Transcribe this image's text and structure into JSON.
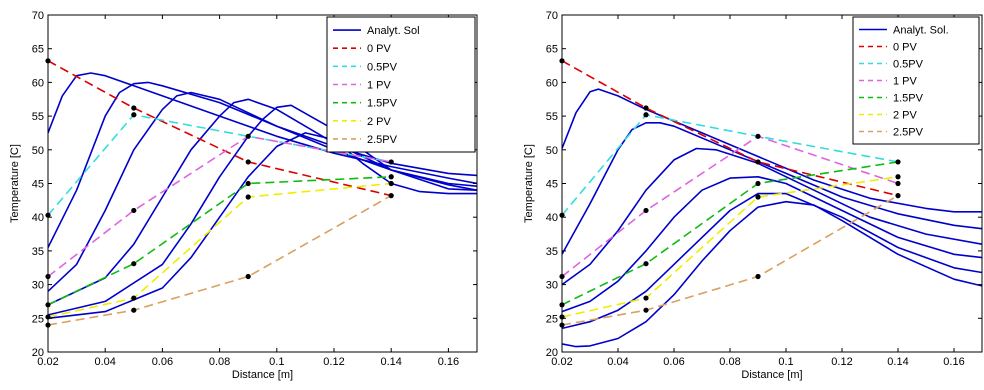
{
  "chart_data": [
    {
      "type": "line",
      "xlabel": "Distance [m]",
      "ylabel": "Temperature [C]",
      "xlim": [
        0.02,
        0.17
      ],
      "ylim": [
        20,
        70
      ],
      "xticks": [
        "0.02",
        "0.04",
        "0.06",
        "0.08",
        "0.1",
        "0.12",
        "0.14",
        "0.16"
      ],
      "yticks": [
        "20",
        "25",
        "30",
        "35",
        "40",
        "45",
        "50",
        "55",
        "60",
        "65",
        "70"
      ],
      "legend_position": "top-right",
      "legend": [
        "Analyt. Sol",
        "0  PV",
        "0.5PV",
        "1  PV",
        "1.5PV",
        "2  PV",
        "2.5PV"
      ],
      "analytic": {
        "name": "Analyt. Sol",
        "color": "#0000cc",
        "curves": [
          [
            [
              0.02,
              52.5
            ],
            [
              0.025,
              58
            ],
            [
              0.03,
              61
            ],
            [
              0.035,
              61.4
            ],
            [
              0.04,
              61
            ],
            [
              0.05,
              59.5
            ],
            [
              0.06,
              58
            ],
            [
              0.08,
              55
            ],
            [
              0.1,
              52
            ],
            [
              0.12,
              49.5
            ],
            [
              0.14,
              47.5
            ],
            [
              0.16,
              45.8
            ],
            [
              0.17,
              45
            ]
          ],
          [
            [
              0.02,
              35.5
            ],
            [
              0.03,
              44
            ],
            [
              0.04,
              55
            ],
            [
              0.045,
              58.5
            ],
            [
              0.05,
              59.8
            ],
            [
              0.055,
              60
            ],
            [
              0.06,
              59.5
            ],
            [
              0.08,
              57
            ],
            [
              0.1,
              53.5
            ],
            [
              0.12,
              50.5
            ],
            [
              0.14,
              48
            ],
            [
              0.16,
              46.5
            ],
            [
              0.17,
              46.2
            ]
          ],
          [
            [
              0.02,
              29
            ],
            [
              0.03,
              33
            ],
            [
              0.04,
              41
            ],
            [
              0.05,
              50
            ],
            [
              0.06,
              56
            ],
            [
              0.065,
              58
            ],
            [
              0.07,
              58.5
            ],
            [
              0.08,
              57.5
            ],
            [
              0.1,
              53.5
            ],
            [
              0.12,
              50
            ],
            [
              0.14,
              47
            ],
            [
              0.16,
              45
            ],
            [
              0.17,
              44.6
            ]
          ],
          [
            [
              0.02,
              27
            ],
            [
              0.04,
              31
            ],
            [
              0.05,
              36
            ],
            [
              0.06,
              43
            ],
            [
              0.07,
              50
            ],
            [
              0.08,
              55
            ],
            [
              0.085,
              57
            ],
            [
              0.09,
              57.5
            ],
            [
              0.1,
              56
            ],
            [
              0.12,
              51
            ],
            [
              0.14,
              47
            ],
            [
              0.16,
              44.8
            ],
            [
              0.17,
              44
            ]
          ],
          [
            [
              0.02,
              25.5
            ],
            [
              0.04,
              27.5
            ],
            [
              0.06,
              33
            ],
            [
              0.07,
              39
            ],
            [
              0.08,
              46
            ],
            [
              0.09,
              52
            ],
            [
              0.095,
              54.5
            ],
            [
              0.1,
              56.3
            ],
            [
              0.105,
              56.6
            ],
            [
              0.12,
              53
            ],
            [
              0.14,
              47
            ],
            [
              0.16,
              44.2
            ],
            [
              0.17,
              44
            ]
          ],
          [
            [
              0.02,
              25
            ],
            [
              0.04,
              26
            ],
            [
              0.06,
              29.5
            ],
            [
              0.07,
              34
            ],
            [
              0.08,
              40
            ],
            [
              0.09,
              46
            ],
            [
              0.1,
              50.5
            ],
            [
              0.11,
              52.5
            ],
            [
              0.12,
              51.5
            ],
            [
              0.13,
              48
            ],
            [
              0.14,
              45
            ],
            [
              0.15,
              43.8
            ],
            [
              0.16,
              43.5
            ],
            [
              0.17,
              43.5
            ]
          ]
        ]
      },
      "series": [
        {
          "name": "0  PV",
          "color": "#dd0000",
          "points": [
            [
              0.02,
              63.2
            ],
            [
              0.05,
              56.2
            ],
            [
              0.09,
              48.2
            ],
            [
              0.14,
              43.2
            ]
          ]
        },
        {
          "name": "0.5PV",
          "color": "#33dddd",
          "points": [
            [
              0.02,
              40.3
            ],
            [
              0.05,
              55.2
            ],
            [
              0.09,
              52
            ],
            [
              0.14,
              48.2
            ]
          ]
        },
        {
          "name": "1  PV",
          "color": "#dd66dd",
          "points": [
            [
              0.02,
              31.2
            ],
            [
              0.05,
              41
            ],
            [
              0.09,
              52
            ],
            [
              0.14,
              48.2
            ]
          ]
        },
        {
          "name": "1.5PV",
          "color": "#11bb11",
          "points": [
            [
              0.02,
              27
            ],
            [
              0.05,
              33.1
            ],
            [
              0.09,
              45
            ],
            [
              0.14,
              46
            ]
          ]
        },
        {
          "name": "2  PV",
          "color": "#eeee00",
          "points": [
            [
              0.02,
              25.2
            ],
            [
              0.05,
              28
            ],
            [
              0.09,
              43
            ],
            [
              0.14,
              45
            ]
          ]
        },
        {
          "name": "2.5PV",
          "color": "#d9a060",
          "points": [
            [
              0.02,
              24
            ],
            [
              0.05,
              26.2
            ],
            [
              0.09,
              31.2
            ],
            [
              0.14,
              43.2
            ]
          ]
        }
      ],
      "markers": [
        [
          0.02,
          63.2
        ],
        [
          0.02,
          40.3
        ],
        [
          0.02,
          31.2
        ],
        [
          0.02,
          27
        ],
        [
          0.02,
          25.2
        ],
        [
          0.02,
          24
        ],
        [
          0.05,
          56.2
        ],
        [
          0.05,
          55.2
        ],
        [
          0.05,
          41
        ],
        [
          0.05,
          33.1
        ],
        [
          0.05,
          28
        ],
        [
          0.05,
          26.2
        ],
        [
          0.09,
          52
        ],
        [
          0.09,
          48.2
        ],
        [
          0.09,
          45
        ],
        [
          0.09,
          43
        ],
        [
          0.09,
          31.2
        ],
        [
          0.14,
          48.2
        ],
        [
          0.14,
          46
        ],
        [
          0.14,
          45
        ],
        [
          0.14,
          43.2
        ]
      ]
    },
    {
      "type": "line",
      "xlabel": "Distance [m]",
      "ylabel": "Temperature [C]",
      "xlim": [
        0.02,
        0.17
      ],
      "ylim": [
        20,
        70
      ],
      "xticks": [
        "0.02",
        "0.04",
        "0.06",
        "0.08",
        "0.1",
        "0.12",
        "0.14",
        "0.16"
      ],
      "yticks": [
        "20",
        "25",
        "30",
        "35",
        "40",
        "45",
        "50",
        "55",
        "60",
        "65",
        "70"
      ],
      "legend_position": "top-right",
      "legend": [
        "Analyt. Sol.",
        "0  PV",
        "0.5PV",
        "1  PV",
        "1.5PV",
        "2  PV",
        "2.5PV"
      ],
      "analytic": {
        "name": "Analyt. Sol.",
        "color": "#0000cc",
        "curves": [
          [
            [
              0.02,
              50.2
            ],
            [
              0.025,
              55.5
            ],
            [
              0.03,
              58.6
            ],
            [
              0.033,
              59
            ],
            [
              0.04,
              58
            ],
            [
              0.05,
              56
            ],
            [
              0.07,
              52.5
            ],
            [
              0.09,
              49
            ],
            [
              0.11,
              45.5
            ],
            [
              0.13,
              42.8
            ],
            [
              0.15,
              41.3
            ],
            [
              0.16,
              40.8
            ],
            [
              0.17,
              40.8
            ]
          ],
          [
            [
              0.02,
              34.5
            ],
            [
              0.03,
              42
            ],
            [
              0.04,
              50
            ],
            [
              0.045,
              53
            ],
            [
              0.05,
              54
            ],
            [
              0.055,
              54
            ],
            [
              0.06,
              53.5
            ],
            [
              0.08,
              50
            ],
            [
              0.1,
              46.5
            ],
            [
              0.12,
              43
            ],
            [
              0.14,
              40.5
            ],
            [
              0.16,
              38.8
            ],
            [
              0.17,
              38.3
            ]
          ],
          [
            [
              0.02,
              30
            ],
            [
              0.03,
              33
            ],
            [
              0.04,
              38
            ],
            [
              0.05,
              44
            ],
            [
              0.06,
              48.5
            ],
            [
              0.068,
              50.2
            ],
            [
              0.075,
              50
            ],
            [
              0.09,
              48
            ],
            [
              0.11,
              44
            ],
            [
              0.13,
              40
            ],
            [
              0.15,
              37.5
            ],
            [
              0.17,
              36
            ]
          ],
          [
            [
              0.02,
              26
            ],
            [
              0.03,
              27.5
            ],
            [
              0.04,
              30.5
            ],
            [
              0.05,
              35
            ],
            [
              0.06,
              40
            ],
            [
              0.07,
              44
            ],
            [
              0.08,
              45.8
            ],
            [
              0.09,
              46
            ],
            [
              0.1,
              45
            ],
            [
              0.12,
              41
            ],
            [
              0.14,
              37
            ],
            [
              0.16,
              34.5
            ],
            [
              0.17,
              34
            ]
          ],
          [
            [
              0.02,
              23.5
            ],
            [
              0.03,
              24.5
            ],
            [
              0.04,
              26.2
            ],
            [
              0.05,
              29
            ],
            [
              0.06,
              33
            ],
            [
              0.07,
              37
            ],
            [
              0.08,
              41
            ],
            [
              0.09,
              43.5
            ],
            [
              0.1,
              43.5
            ],
            [
              0.12,
              40
            ],
            [
              0.14,
              35.5
            ],
            [
              0.16,
              32.5
            ],
            [
              0.17,
              31.8
            ]
          ],
          [
            [
              0.02,
              21.2
            ],
            [
              0.025,
              20.8
            ],
            [
              0.03,
              20.9
            ],
            [
              0.04,
              22
            ],
            [
              0.05,
              24.5
            ],
            [
              0.06,
              28.5
            ],
            [
              0.07,
              33.5
            ],
            [
              0.08,
              38
            ],
            [
              0.09,
              41.5
            ],
            [
              0.1,
              42.3
            ],
            [
              0.11,
              41.8
            ],
            [
              0.12,
              39.5
            ],
            [
              0.14,
              34.5
            ],
            [
              0.16,
              30.8
            ],
            [
              0.17,
              29.8
            ]
          ]
        ]
      },
      "series": [
        {
          "name": "0  PV",
          "color": "#dd0000",
          "points": [
            [
              0.02,
              63.2
            ],
            [
              0.05,
              56.2
            ],
            [
              0.09,
              48.2
            ],
            [
              0.14,
              43.2
            ]
          ]
        },
        {
          "name": "0.5PV",
          "color": "#33dddd",
          "points": [
            [
              0.02,
              40.3
            ],
            [
              0.05,
              55.2
            ],
            [
              0.09,
              52
            ],
            [
              0.14,
              48.2
            ]
          ]
        },
        {
          "name": "1  PV",
          "color": "#dd66dd",
          "points": [
            [
              0.02,
              31.2
            ],
            [
              0.05,
              41
            ],
            [
              0.09,
              52
            ],
            [
              0.14,
              45
            ]
          ]
        },
        {
          "name": "1.5PV",
          "color": "#11bb11",
          "points": [
            [
              0.02,
              27
            ],
            [
              0.05,
              33.1
            ],
            [
              0.09,
              45
            ],
            [
              0.14,
              48.2
            ]
          ]
        },
        {
          "name": "2  PV",
          "color": "#eeee00",
          "points": [
            [
              0.02,
              25.2
            ],
            [
              0.05,
              28
            ],
            [
              0.09,
              43
            ],
            [
              0.14,
              46
            ]
          ]
        },
        {
          "name": "2.5PV",
          "color": "#d9a060",
          "points": [
            [
              0.02,
              24
            ],
            [
              0.05,
              26.2
            ],
            [
              0.09,
              31.2
            ],
            [
              0.14,
              43.2
            ]
          ]
        }
      ],
      "markers": [
        [
          0.02,
          63.2
        ],
        [
          0.02,
          40.3
        ],
        [
          0.02,
          31.2
        ],
        [
          0.02,
          27
        ],
        [
          0.02,
          25.2
        ],
        [
          0.02,
          24
        ],
        [
          0.05,
          56.2
        ],
        [
          0.05,
          55.2
        ],
        [
          0.05,
          41
        ],
        [
          0.05,
          33.1
        ],
        [
          0.05,
          28
        ],
        [
          0.05,
          26.2
        ],
        [
          0.09,
          52
        ],
        [
          0.09,
          48.2
        ],
        [
          0.09,
          45
        ],
        [
          0.09,
          43
        ],
        [
          0.09,
          31.2
        ],
        [
          0.14,
          48.2
        ],
        [
          0.14,
          46
        ],
        [
          0.14,
          45
        ],
        [
          0.14,
          43.2
        ]
      ]
    }
  ]
}
